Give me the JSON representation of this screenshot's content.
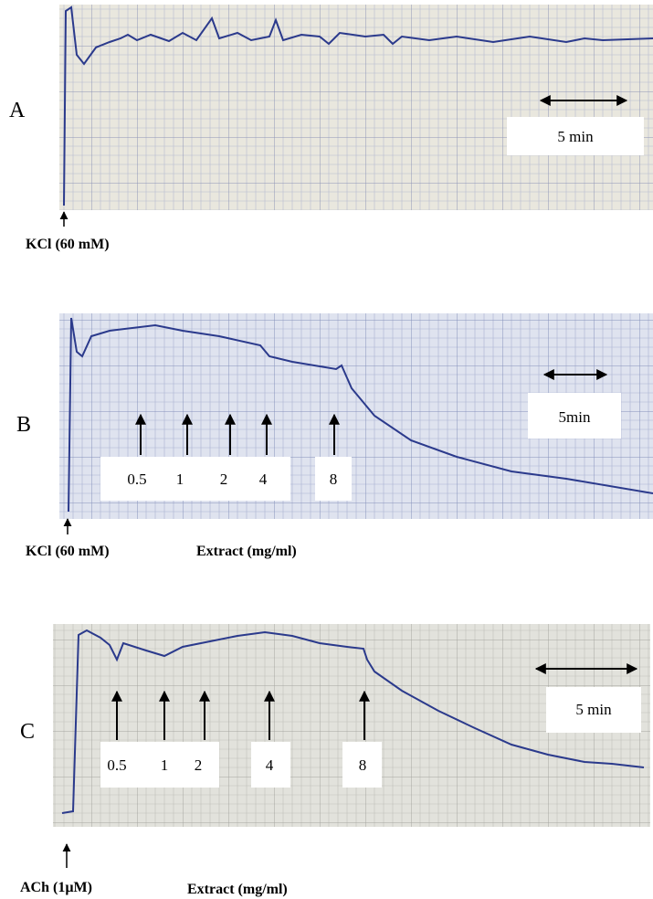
{
  "panels": [
    {
      "label": "A",
      "stimulus": "KCl (60 mM)",
      "scale_bar": "5 min"
    },
    {
      "label": "B",
      "stimulus": "KCl (60 mM)",
      "scale_bar": "5min",
      "dose_unit": "Extract  (mg/ml)",
      "doses": [
        "0.5",
        "1",
        "2",
        "4",
        "8"
      ]
    },
    {
      "label": "C",
      "stimulus": "ACh (1µM)",
      "scale_bar": "5 min",
      "dose_unit": "Extract (mg/ml)",
      "doses": [
        "0.5",
        "1",
        "2",
        "4",
        "8"
      ]
    }
  ]
}
